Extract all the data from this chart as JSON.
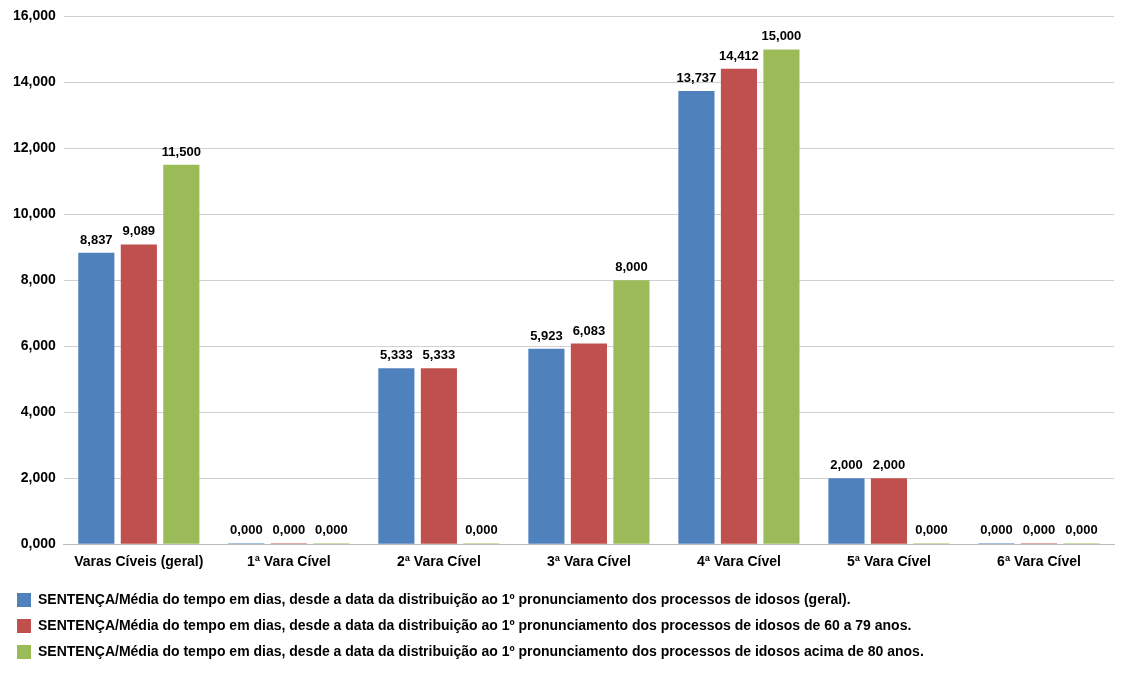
{
  "chart_data": {
    "type": "bar",
    "categories": [
      "Varas Cíveis (geral)",
      "1ª Vara Cível",
      "2ª Vara Cível",
      "3ª Vara Cível",
      "4ª Vara Cível",
      "5ª Vara Cível",
      "6ª Vara Cível"
    ],
    "series": [
      {
        "name": "SENTENÇA/Média do tempo em dias, desde a data da distribuição ao 1º pronunciamento dos processos de idosos (geral).",
        "color": "#4f81bd",
        "values": [
          8.837,
          0,
          5.333,
          5.923,
          13.737,
          2,
          0
        ],
        "value_labels": [
          "8,837",
          "0,000",
          "5,333",
          "5,923",
          "13,737",
          "2,000",
          "0,000"
        ]
      },
      {
        "name": "SENTENÇA/Média do tempo em dias, desde a data da distribuição ao 1º pronunciamento dos processos de idosos de 60 a 79 anos.",
        "color": "#c0504d",
        "values": [
          9.089,
          0,
          5.333,
          6.083,
          14.412,
          2,
          0
        ],
        "value_labels": [
          "9,089",
          "0,000",
          "5,333",
          "6,083",
          "14,412",
          "2,000",
          "0,000"
        ]
      },
      {
        "name": "SENTENÇA/Média do tempo em dias, desde a data da distribuição ao 1º pronunciamento dos processos de idosos acima de 80 anos.",
        "color": "#9bbb59",
        "values": [
          11.5,
          0,
          0,
          8,
          15,
          0,
          0
        ],
        "value_labels": [
          "11,500",
          "0,000",
          "0,000",
          "8,000",
          "15,000",
          "0,000",
          "0,000"
        ]
      }
    ],
    "ylim": [
      0,
      16
    ],
    "yticks": [
      {
        "value": 0,
        "label": "0,000"
      },
      {
        "value": 2,
        "label": "2,000"
      },
      {
        "value": 4,
        "label": "4,000"
      },
      {
        "value": 6,
        "label": "6,000"
      },
      {
        "value": 8,
        "label": "8,000"
      },
      {
        "value": 10,
        "label": "10,000"
      },
      {
        "value": 12,
        "label": "12,000"
      },
      {
        "value": 14,
        "label": "14,000"
      },
      {
        "value": 16,
        "label": "16,000"
      }
    ],
    "grid": "y",
    "legend": "bottom"
  }
}
